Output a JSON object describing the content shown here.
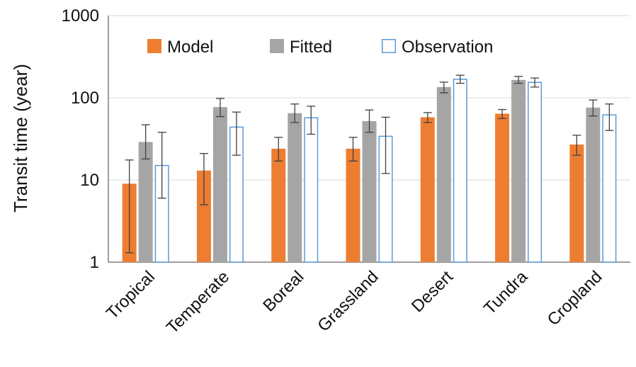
{
  "chart_data": {
    "type": "bar",
    "title": "",
    "xlabel": "",
    "ylabel": "Transit time (year)",
    "yscale": "log",
    "ylim": [
      1,
      1000
    ],
    "yticks": [
      1,
      10,
      100,
      1000
    ],
    "ytick_labels": [
      "1",
      "10",
      "100",
      "1000"
    ],
    "grid": "horizontal",
    "legend_position": "top",
    "categories": [
      "Tropical",
      "Temperate",
      "Boreal",
      "Grassland",
      "Desert",
      "Tundra",
      "Cropland"
    ],
    "series": [
      {
        "name": "Model",
        "color": "#ED7D31",
        "style": "filled",
        "values": [
          9,
          13,
          24,
          24,
          58,
          64,
          27
        ],
        "err_low": [
          1.3,
          5,
          17,
          17,
          50,
          56,
          20
        ],
        "err_high": [
          17.5,
          21,
          33,
          33,
          66,
          72,
          35
        ]
      },
      {
        "name": "Fitted",
        "color": "#A5A5A5",
        "style": "filled",
        "values": [
          29,
          77,
          65,
          52,
          135,
          165,
          76
        ],
        "err_low": [
          18,
          59,
          50,
          38,
          115,
          150,
          60
        ],
        "err_high": [
          47,
          98,
          84,
          71,
          155,
          182,
          94
        ]
      },
      {
        "name": "Observation",
        "color": "#5B9BD5",
        "style": "outline",
        "values": [
          15,
          44,
          57,
          34,
          168,
          154,
          62
        ],
        "err_low": [
          6,
          20,
          36,
          12,
          150,
          135,
          40
        ],
        "err_high": [
          38,
          67,
          79,
          58,
          188,
          174,
          84
        ]
      }
    ]
  }
}
